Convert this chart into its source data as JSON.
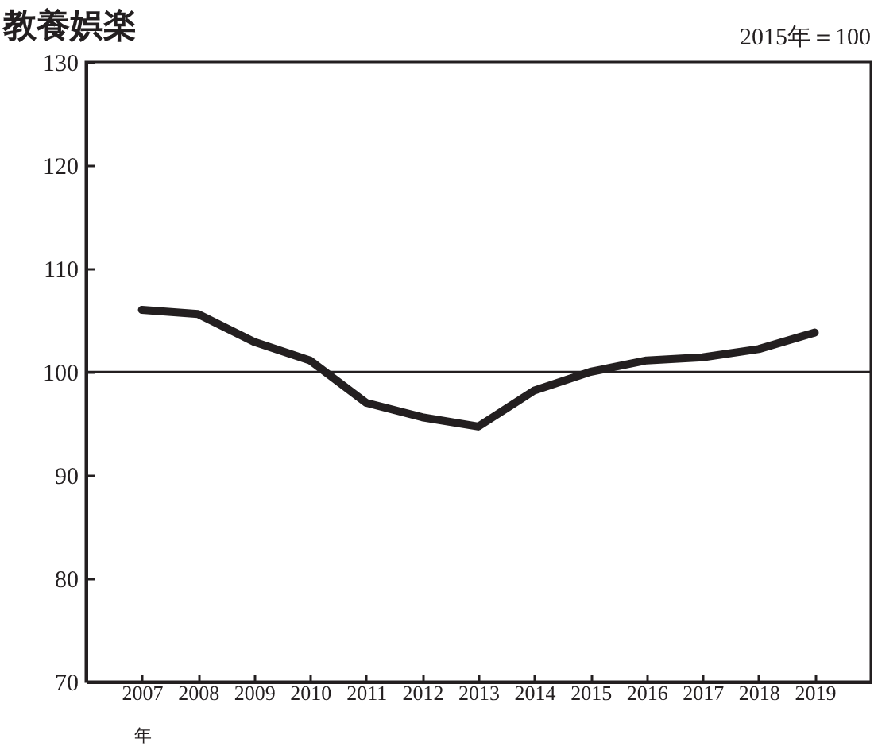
{
  "chart_data": {
    "type": "line",
    "title": "教養娯楽",
    "annotations": [
      "2015年＝100"
    ],
    "xlabel": "年",
    "categories": [
      "2007",
      "2008",
      "2009",
      "2010",
      "2011",
      "2012",
      "2013",
      "2014",
      "2015",
      "2016",
      "2017",
      "2018",
      "2019"
    ],
    "series": [
      {
        "color": "#231f20",
        "values": [
          106.0,
          105.6,
          102.9,
          101.1,
          97.0,
          95.6,
          94.7,
          98.2,
          100.0,
          101.1,
          101.4,
          102.2,
          103.8
        ]
      }
    ],
    "ylim": [
      70,
      130
    ],
    "yticks": [
      70,
      80,
      90,
      100,
      110,
      120,
      130
    ],
    "ref_lines": [
      {
        "axis": "y",
        "value": 100,
        "color": "#231f20"
      }
    ]
  }
}
